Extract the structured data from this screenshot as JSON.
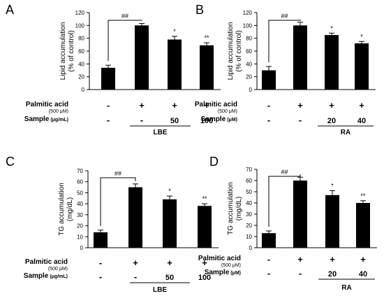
{
  "chart_data": [
    {
      "panel": "A",
      "type": "bar",
      "ylabel_lines": [
        "Lipid accumulation",
        "(% of control)"
      ],
      "ylim": [
        0,
        120
      ],
      "yticks": [
        0,
        20,
        40,
        60,
        80,
        100,
        120
      ],
      "values": [
        34,
        100,
        78,
        69
      ],
      "errors": [
        4,
        3,
        5,
        4
      ],
      "significance": [
        "",
        "",
        "*",
        "**"
      ],
      "bracket_label": "##",
      "rows": [
        {
          "label": "Palmitic acid",
          "sublabel": "(500 μM)",
          "values": [
            "-",
            "+",
            "+",
            "+"
          ]
        },
        {
          "label": "Sample",
          "unit": "(μg/mL)",
          "values": [
            "-",
            "-",
            "50",
            "100"
          ]
        }
      ],
      "group_label": "LBE"
    },
    {
      "panel": "B",
      "type": "bar",
      "ylabel_lines": [
        "Lipid accumulation",
        "(% of control)"
      ],
      "ylim": [
        0,
        120
      ],
      "yticks": [
        0,
        20,
        40,
        60,
        80,
        100,
        120
      ],
      "values": [
        30,
        100,
        85,
        72
      ],
      "errors": [
        6,
        5,
        3,
        3
      ],
      "significance": [
        "",
        "",
        "*",
        "*"
      ],
      "bracket_label": "##",
      "rows": [
        {
          "label": "Palmitic acid",
          "sublabel": "(500 μM)",
          "values": [
            "-",
            "+",
            "+",
            "+"
          ]
        },
        {
          "label": "Sample",
          "unit": "(μM)",
          "values": [
            "-",
            "-",
            "20",
            "40"
          ]
        }
      ],
      "group_label": "RA"
    },
    {
      "panel": "C",
      "type": "bar",
      "ylabel_lines": [
        "TG accumulation",
        "(mg/dL)"
      ],
      "ylim": [
        0,
        70
      ],
      "yticks": [
        0,
        10,
        20,
        30,
        40,
        50,
        60,
        70
      ],
      "values": [
        14,
        55,
        44,
        38
      ],
      "errors": [
        2,
        3,
        3,
        2
      ],
      "significance": [
        "",
        "",
        "*",
        "**"
      ],
      "bracket_label": "##",
      "rows": [
        {
          "label": "Palmitic acid",
          "sublabel": "(500 μM)",
          "values": [
            "-",
            "+",
            "+",
            "+"
          ]
        },
        {
          "label": "Sample",
          "unit": "(μg/mL)",
          "values": [
            "-",
            "-",
            "50",
            "100"
          ]
        }
      ],
      "group_label": "LBE"
    },
    {
      "panel": "D",
      "type": "bar",
      "ylabel_lines": [
        "TG accumulation",
        "(mg/dL)"
      ],
      "ylim": [
        0,
        70
      ],
      "yticks": [
        0,
        10,
        20,
        30,
        40,
        50,
        60,
        70
      ],
      "values": [
        13,
        60,
        47,
        40
      ],
      "errors": [
        2,
        3,
        4,
        2
      ],
      "significance": [
        "",
        "",
        "*",
        "**"
      ],
      "bracket_label": "##",
      "rows": [
        {
          "label": "Palmitic acid",
          "sublabel": "(500 μM)",
          "values": [
            "-",
            "+",
            "+",
            "+"
          ]
        },
        {
          "label": "Sample",
          "unit": "(μM)",
          "values": [
            "-",
            "-",
            "20",
            "40"
          ]
        }
      ],
      "group_label": "RA"
    }
  ]
}
